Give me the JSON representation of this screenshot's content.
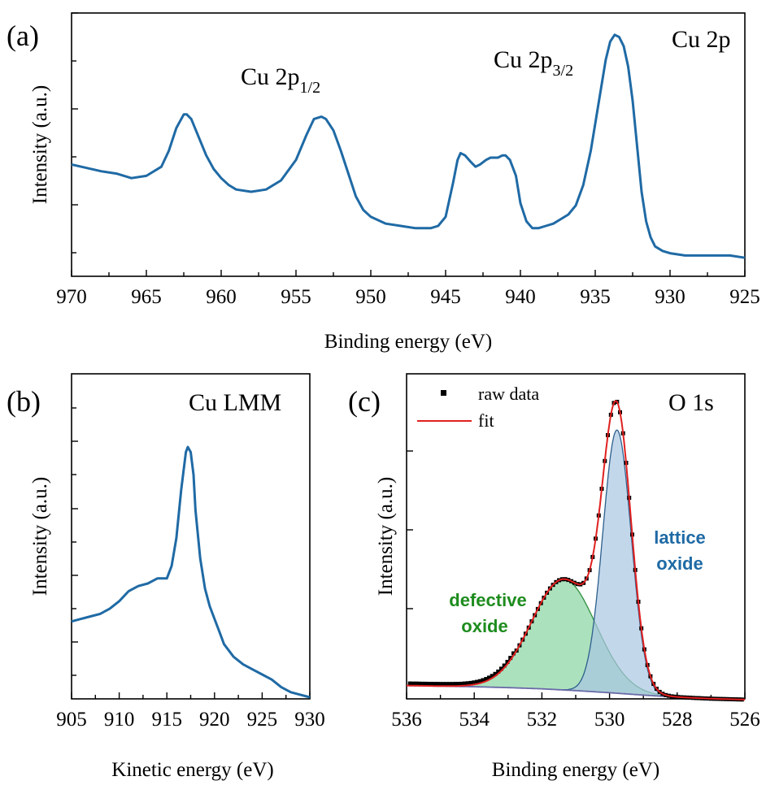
{
  "chart_data": [
    {
      "panel": "(a)",
      "type": "line",
      "annotation_main": "Cu 2p",
      "peak_labels": [
        {
          "text": "Cu 2p",
          "sub": "1/2"
        },
        {
          "text": "Cu 2p",
          "sub": "3/2"
        }
      ],
      "xlabel": "Binding energy (eV)",
      "ylabel": "Intensity (a.u.)",
      "xlim": [
        970,
        925
      ],
      "ylim": [
        0,
        1
      ],
      "xticks": [
        970,
        965,
        960,
        955,
        950,
        945,
        940,
        935,
        930,
        925
      ],
      "color": "#1f6aa5",
      "series": [
        {
          "x": [
            970,
            968,
            967,
            966,
            965,
            964,
            963.5,
            963,
            962.5,
            962.3,
            962,
            961.5,
            961,
            960.5,
            960,
            959.5,
            959,
            958,
            957,
            956,
            955,
            954.3,
            953.8,
            953.3,
            953,
            952.5,
            952,
            951.5,
            951,
            950.5,
            950,
            949,
            948,
            947,
            946,
            945.5,
            945,
            944.5,
            944.2,
            944,
            943.7,
            943.3,
            943,
            942.7,
            942.3,
            942,
            941.5,
            941.2,
            941,
            940.7,
            940.3,
            940,
            939.6,
            939.2,
            938.8,
            938.3,
            937.8,
            937.3,
            936.8,
            936.3,
            935.8,
            935.3,
            934.8,
            934.3,
            934,
            933.7,
            933.4,
            933.1,
            932.8,
            932.5,
            932.2,
            931.9,
            931.6,
            931.3,
            931,
            930.5,
            930,
            929,
            928,
            927,
            926,
            925
          ],
          "y": [
            0.42,
            0.39,
            0.38,
            0.36,
            0.37,
            0.41,
            0.48,
            0.58,
            0.64,
            0.64,
            0.62,
            0.54,
            0.46,
            0.4,
            0.36,
            0.33,
            0.31,
            0.3,
            0.31,
            0.35,
            0.44,
            0.55,
            0.62,
            0.63,
            0.62,
            0.57,
            0.48,
            0.38,
            0.28,
            0.22,
            0.19,
            0.16,
            0.15,
            0.14,
            0.14,
            0.15,
            0.19,
            0.34,
            0.44,
            0.47,
            0.46,
            0.43,
            0.41,
            0.42,
            0.44,
            0.45,
            0.45,
            0.46,
            0.46,
            0.44,
            0.37,
            0.25,
            0.17,
            0.14,
            0.14,
            0.15,
            0.16,
            0.18,
            0.2,
            0.24,
            0.33,
            0.48,
            0.68,
            0.88,
            0.96,
            0.99,
            0.98,
            0.94,
            0.85,
            0.7,
            0.5,
            0.3,
            0.17,
            0.1,
            0.06,
            0.04,
            0.03,
            0.02,
            0.02,
            0.02,
            0.02,
            0.01
          ]
        }
      ]
    },
    {
      "panel": "(b)",
      "type": "line",
      "annotation_main": "Cu LMM",
      "xlabel": "Kinetic energy (eV)",
      "ylabel": "Intensity (a.u.)",
      "xlim": [
        905,
        930
      ],
      "ylim": [
        0,
        1
      ],
      "xticks": [
        905,
        910,
        915,
        920,
        925,
        930
      ],
      "color": "#1f6aa5",
      "series": [
        {
          "x": [
            905,
            906,
            907,
            908,
            909,
            910,
            911,
            912,
            913,
            913.5,
            914,
            914.5,
            915,
            915.5,
            916,
            916.5,
            917,
            917.2,
            917.5,
            917.8,
            918,
            918.5,
            919,
            919.5,
            920,
            920.5,
            921,
            922,
            923,
            924,
            925,
            926,
            927,
            928,
            929,
            930
          ],
          "y": [
            0.3,
            0.31,
            0.32,
            0.33,
            0.35,
            0.38,
            0.42,
            0.44,
            0.45,
            0.46,
            0.47,
            0.47,
            0.47,
            0.52,
            0.63,
            0.82,
            0.97,
            0.99,
            0.97,
            0.88,
            0.74,
            0.55,
            0.43,
            0.36,
            0.31,
            0.26,
            0.21,
            0.16,
            0.13,
            0.11,
            0.09,
            0.07,
            0.04,
            0.02,
            0.01,
            0.0
          ]
        }
      ]
    },
    {
      "panel": "(c)",
      "type": "line",
      "annotation_main": "O 1s",
      "xlabel": "Binding energy (eV)",
      "ylabel": "Intensity (a.u.)",
      "xlim": [
        536,
        526
      ],
      "ylim": [
        0,
        1
      ],
      "xticks": [
        536,
        534,
        532,
        530,
        528,
        526
      ],
      "legend": {
        "position": "top-left",
        "entries": [
          "raw data",
          "fit"
        ]
      },
      "component_labels": {
        "defective": [
          "defective",
          "oxide"
        ],
        "lattice": [
          "lattice",
          "oxide"
        ]
      },
      "colors": {
        "raw": "#000000",
        "fit": "#e02020",
        "defective_fill": "#7fd19a",
        "defective_line": "#2f8f3f",
        "defective_label": "#1e8c1e",
        "lattice_fill": "#a9c6e2",
        "lattice_line": "#2c5f8c",
        "lattice_label": "#1f6aa5",
        "background": "#6a6aa8"
      },
      "background": {
        "x": [
          536,
          535,
          534,
          533,
          532,
          531,
          530,
          529,
          528,
          527,
          526
        ],
        "y": [
          0.05,
          0.048,
          0.046,
          0.043,
          0.039,
          0.033,
          0.026,
          0.018,
          0.011,
          0.006,
          0.003
        ]
      },
      "defective_oxide": {
        "center": 531.35,
        "sigma": 0.95,
        "amplitude": 0.37
      },
      "lattice_oxide": {
        "center": 529.78,
        "sigma": 0.42,
        "amplitude": 0.88
      },
      "raw_data_step": 0.09
    }
  ]
}
